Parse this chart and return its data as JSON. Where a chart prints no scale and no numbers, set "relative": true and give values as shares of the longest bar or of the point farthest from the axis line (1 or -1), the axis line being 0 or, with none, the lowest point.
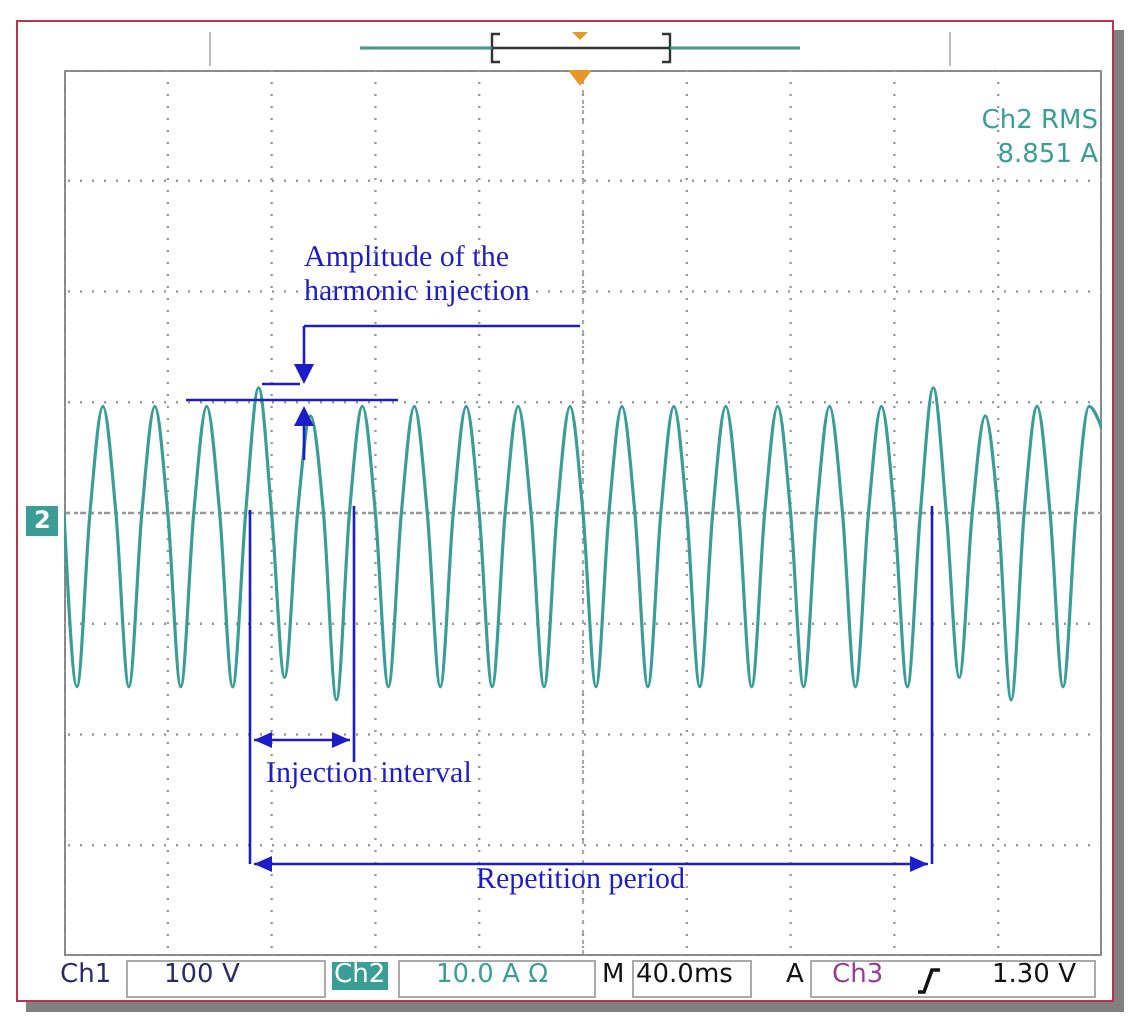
{
  "chart_data": {
    "type": "line",
    "relative": true,
    "grid": true,
    "categories": [
      null,
      null,
      null,
      null,
      null,
      null,
      null,
      null,
      null,
      null,
      null,
      null,
      null,
      null,
      null,
      null,
      null,
      null,
      null,
      null,
      null,
      null,
      null,
      null,
      null,
      null,
      null,
      null,
      null,
      null,
      null,
      null,
      null,
      null,
      null,
      null,
      null,
      null,
      null,
      null,
      null,
      null,
      null,
      null,
      null,
      null,
      null,
      null,
      null,
      null,
      null,
      null,
      null,
      null,
      null,
      null,
      null,
      null,
      null,
      null,
      null,
      null,
      null,
      null,
      null,
      null,
      null,
      null,
      null,
      null,
      null,
      null,
      null,
      null,
      null,
      null,
      null,
      null,
      null,
      null,
      null
    ],
    "series": [
      {
        "color": "#3a9e96",
        "values": [
          0,
          -0.93,
          0,
          0.57,
          0,
          -0.93,
          0,
          0.57,
          0,
          -0.93,
          0,
          0.57,
          0,
          -0.93,
          0,
          0.67,
          0,
          -0.88,
          0,
          0.52,
          0,
          -1,
          0,
          0.57,
          0,
          -0.93,
          0,
          0.57,
          0,
          -0.93,
          0,
          0.57,
          0,
          -0.93,
          0,
          0.57,
          0,
          -0.93,
          0,
          0.57,
          0,
          -0.93,
          0,
          0.57,
          0,
          -0.93,
          0,
          0.57,
          0,
          -0.93,
          0,
          0.57,
          0,
          -0.93,
          0,
          0.57,
          0,
          -0.93,
          0,
          0.57,
          0,
          -0.93,
          0,
          0.57,
          0,
          -0.93,
          0,
          0.67,
          0,
          -0.88,
          0,
          0.52,
          0,
          -1,
          0,
          0.57,
          0,
          -0.93,
          0,
          0.57,
          0.45
        ]
      }
    ],
    "annotations": [
      "Ch2 RMS",
      "8.851 A",
      "Amplitude of the harmonic injection",
      "Injection interval",
      "Repetition period",
      "2",
      "Ch1",
      "100 V",
      "Ch2",
      "10.0 A Ω",
      "M",
      "40.0ms",
      "A",
      "Ch3",
      "1.30 V"
    ]
  }
}
